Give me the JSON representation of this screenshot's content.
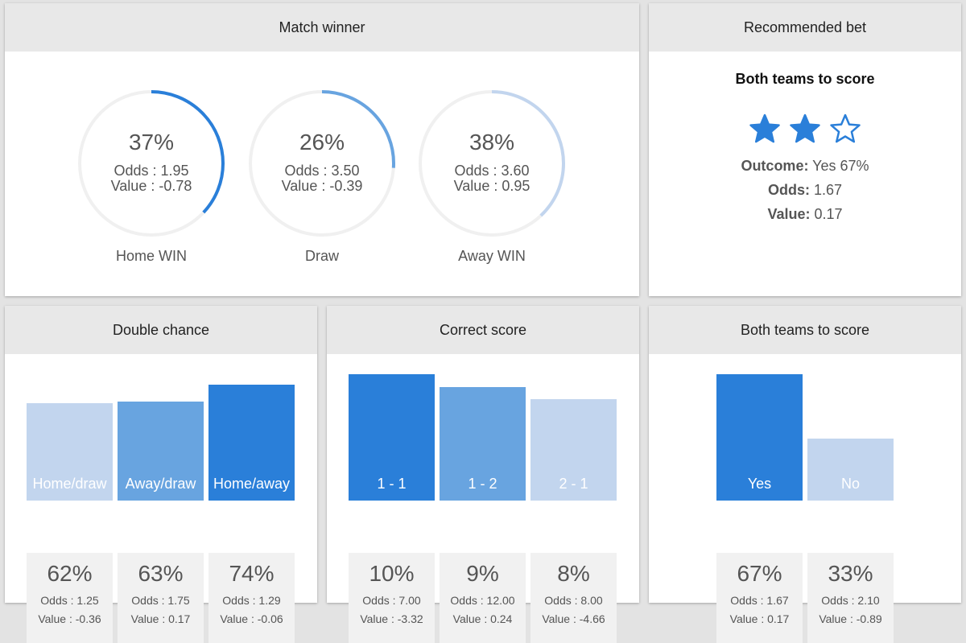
{
  "colors": {
    "dark": "#2a7fd9",
    "mid": "#68a4e0",
    "light": "#c2d5ee",
    "track": "#f0f0f0"
  },
  "match_winner": {
    "title": "Match winner",
    "items": [
      {
        "pct_value": 37,
        "pct": "37%",
        "odds": "Odds : 1.95",
        "value": "Value : -0.78",
        "label": "Home WIN",
        "color": "#2a7fd9"
      },
      {
        "pct_value": 26,
        "pct": "26%",
        "odds": "Odds : 3.50",
        "value": "Value : -0.39",
        "label": "Draw",
        "color": "#68a4e0"
      },
      {
        "pct_value": 38,
        "pct": "38%",
        "odds": "Odds : 3.60",
        "value": "Value : 0.95",
        "label": "Away WIN",
        "color": "#c2d5ee"
      }
    ]
  },
  "recommended": {
    "title": "Recommended bet",
    "bet": "Both teams to score",
    "stars": {
      "rating": 2,
      "max": 3
    },
    "outcome_label": "Outcome:",
    "outcome_value": "Yes 67%",
    "odds_label": "Odds:",
    "odds_value": "1.67",
    "value_label": "Value:",
    "value_value": "0.17"
  },
  "double_chance": {
    "title": "Double chance",
    "items": [
      {
        "name": "Home/draw",
        "pct_value": 62,
        "pct": "62%",
        "odds": "Odds : 1.25",
        "value": "Value : -0.36",
        "color": "#c2d5ee"
      },
      {
        "name": "Away/draw",
        "pct_value": 63,
        "pct": "63%",
        "odds": "Odds : 1.75",
        "value": "Value : 0.17",
        "color": "#68a4e0"
      },
      {
        "name": "Home/away",
        "pct_value": 74,
        "pct": "74%",
        "odds": "Odds : 1.29",
        "value": "Value : -0.06",
        "color": "#2a7fd9"
      }
    ]
  },
  "correct_score": {
    "title": "Correct score",
    "items": [
      {
        "name": "1 - 1",
        "pct_value": 10,
        "pct": "10%",
        "odds": "Odds : 7.00",
        "value": "Value : -3.32",
        "color": "#2a7fd9"
      },
      {
        "name": "1 - 2",
        "pct_value": 9,
        "pct": "9%",
        "odds": "Odds : 12.00",
        "value": "Value : 0.24",
        "color": "#68a4e0"
      },
      {
        "name": "2 - 1",
        "pct_value": 8,
        "pct": "8%",
        "odds": "Odds : 8.00",
        "value": "Value : -4.66",
        "color": "#c2d5ee"
      }
    ]
  },
  "btts": {
    "title": "Both teams to score",
    "items": [
      {
        "name": "Yes",
        "pct_value": 67,
        "pct": "67%",
        "odds": "Odds : 1.67",
        "value": "Value : 0.17",
        "color": "#2a7fd9"
      },
      {
        "name": "No",
        "pct_value": 33,
        "pct": "33%",
        "odds": "Odds : 2.10",
        "value": "Value : -0.89",
        "color": "#c2d5ee"
      }
    ]
  }
}
